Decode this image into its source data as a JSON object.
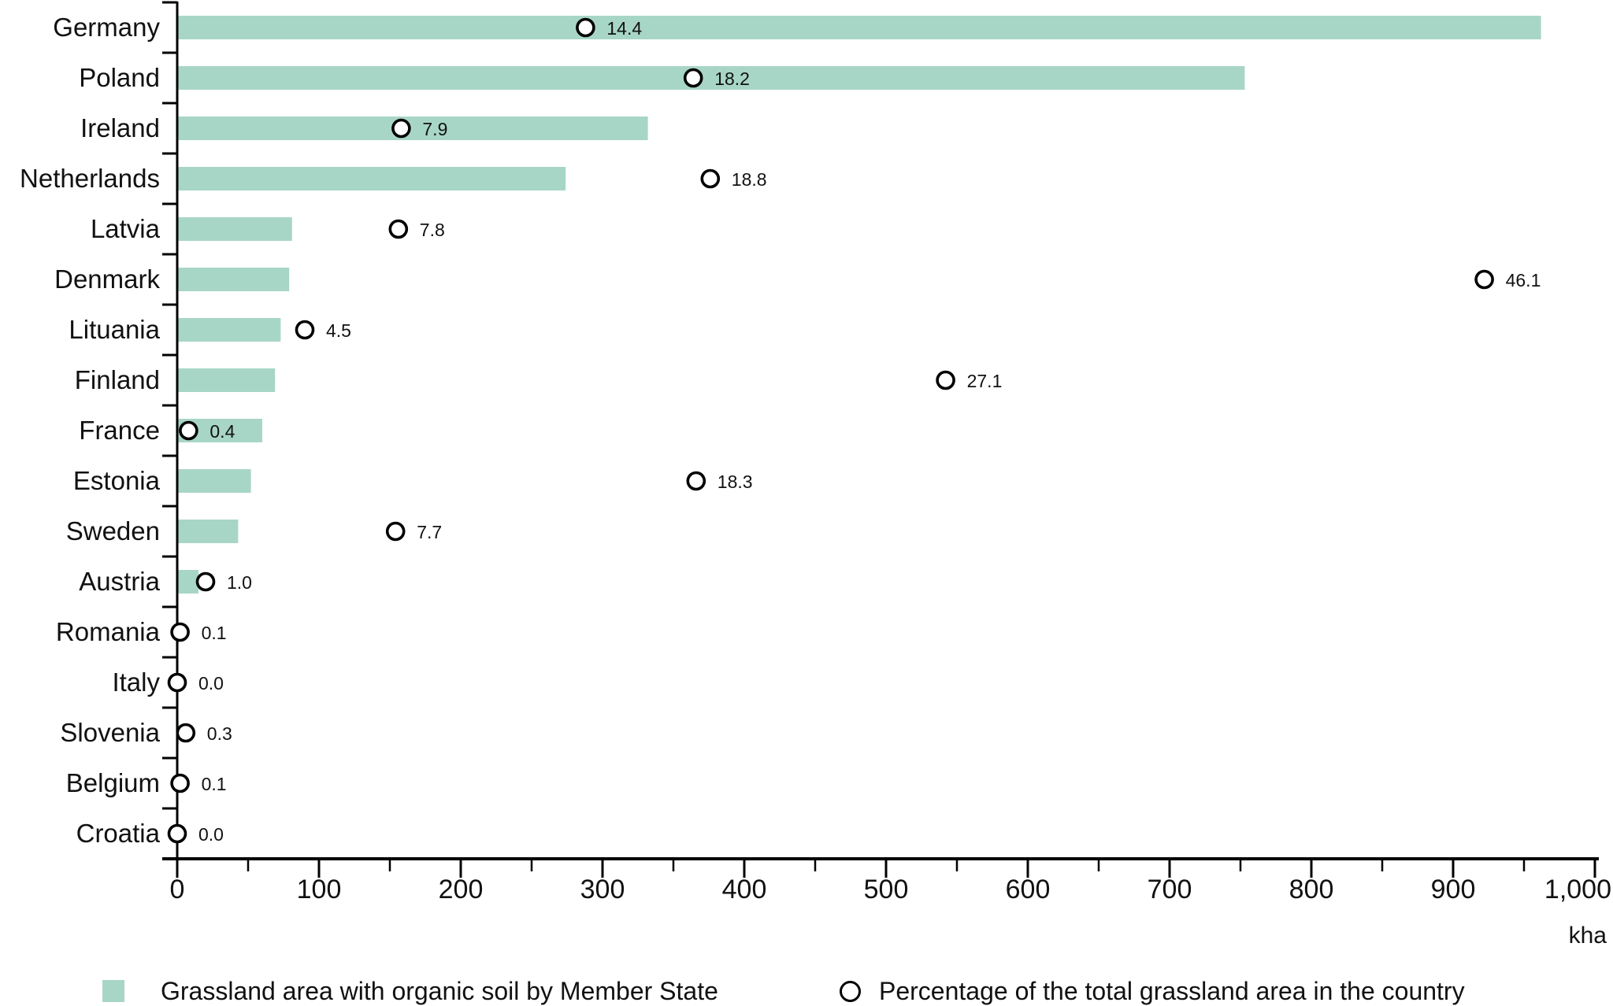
{
  "chart_data": {
    "type": "bar",
    "orientation": "horizontal",
    "categories": [
      "Germany",
      "Poland",
      "Ireland",
      "Netherlands",
      "Latvia",
      "Denmark",
      "Lituania",
      "Finland",
      "France",
      "Estonia",
      "Sweden",
      "Austria",
      "Romania",
      "Italy",
      "Slovenia",
      "Belgium",
      "Croatia"
    ],
    "series": [
      {
        "name": "Grassland area with organic soil by Member State",
        "kind": "bar",
        "unit": "kha",
        "values": [
          962,
          753,
          332,
          274,
          81,
          79,
          73,
          69,
          60,
          52,
          43,
          15,
          1,
          0.5,
          1,
          0.5,
          0.3
        ]
      },
      {
        "name": "Percentage of the total grassland area in the country",
        "kind": "point",
        "unit": "%",
        "values": [
          14.4,
          18.2,
          7.9,
          18.8,
          7.8,
          46.1,
          4.5,
          27.1,
          0.4,
          18.3,
          7.7,
          1.0,
          0.1,
          0.0,
          0.3,
          0.1,
          0.0
        ],
        "axis_mapping": "1 percent = 20 kha on shared x axis"
      }
    ],
    "xlabel": "kha",
    "xlim": [
      0,
      1000
    ],
    "x_major_ticks": [
      0,
      100,
      200,
      300,
      400,
      500,
      600,
      700,
      800,
      900,
      1000
    ],
    "x_tick_labels": [
      "0",
      "100",
      "200",
      "300",
      "400",
      "500",
      "600",
      "700",
      "800",
      "900",
      "1,000"
    ],
    "x_minor_tick_step": 50,
    "grid": false,
    "legend_position": "bottom",
    "colors": {
      "bar": "#a8d6c6",
      "marker_fill": "#ffffff",
      "marker_stroke": "#000000",
      "axis": "#000000",
      "text": "#111111"
    }
  },
  "legend": {
    "items": [
      {
        "swatch": "square-swatch-icon",
        "label": "Grassland area with organic soil by Member State"
      },
      {
        "swatch": "circle-swatch-icon",
        "label": "Percentage of the total grassland area in the country"
      }
    ]
  }
}
